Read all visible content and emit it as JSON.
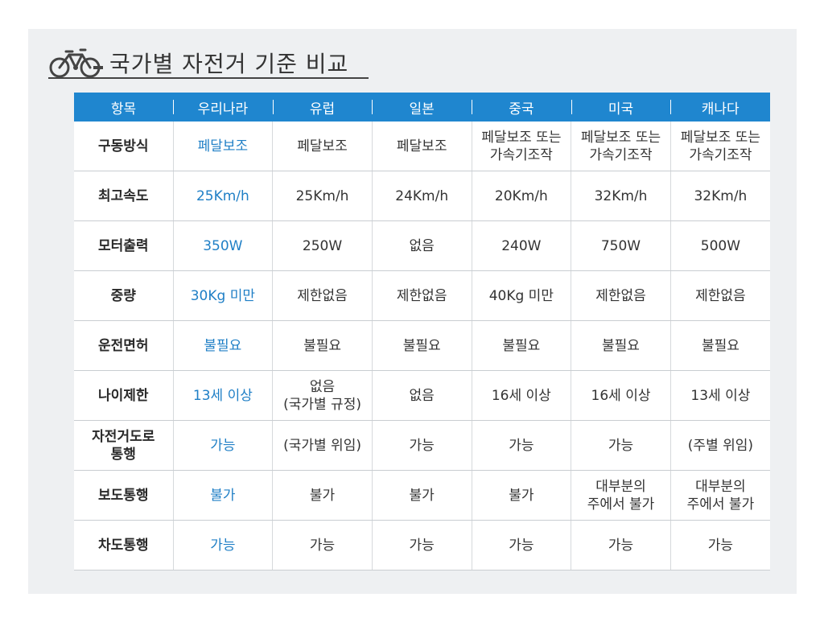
{
  "title": "국가별 자전거 기준 비교",
  "icon": "bicycle-icon",
  "colors": {
    "header_bg": "#1f86cf",
    "korea_text": "#1f7fc6",
    "panel_bg": "#eef0f2"
  },
  "table": {
    "headers": [
      "항목",
      "우리나라",
      "유럽",
      "일본",
      "중국",
      "미국",
      "캐나다"
    ],
    "rows": [
      {
        "label": "구동방식",
        "cells": [
          "페달보조",
          "페달보조",
          "페달보조",
          "페달보조 또는\n가속기조작",
          "페달보조 또는\n가속기조작",
          "페달보조 또는\n가속기조작"
        ]
      },
      {
        "label": "최고속도",
        "cells": [
          "25Km/h",
          "25Km/h",
          "24Km/h",
          "20Km/h",
          "32Km/h",
          "32Km/h"
        ]
      },
      {
        "label": "모터출력",
        "cells": [
          "350W",
          "250W",
          "없음",
          "240W",
          "750W",
          "500W"
        ]
      },
      {
        "label": "중량",
        "cells": [
          "30Kg 미만",
          "제한없음",
          "제한없음",
          "40Kg 미만",
          "제한없음",
          "제한없음"
        ]
      },
      {
        "label": "운전면허",
        "cells": [
          "불필요",
          "불필요",
          "불필요",
          "불필요",
          "불필요",
          "불필요"
        ]
      },
      {
        "label": "나이제한",
        "cells": [
          "13세 이상",
          "없음\n(국가별 규정)",
          "없음",
          "16세 이상",
          "16세 이상",
          "13세 이상"
        ]
      },
      {
        "label": "자전거도로\n통행",
        "cells": [
          "가능",
          "(국가별 위임)",
          "가능",
          "가능",
          "가능",
          "(주별 위임)"
        ]
      },
      {
        "label": "보도통행",
        "cells": [
          "불가",
          "불가",
          "불가",
          "불가",
          "대부분의\n주에서 불가",
          "대부분의\n주에서 불가"
        ]
      },
      {
        "label": "차도통행",
        "cells": [
          "가능",
          "가능",
          "가능",
          "가능",
          "가능",
          "가능"
        ]
      }
    ]
  }
}
